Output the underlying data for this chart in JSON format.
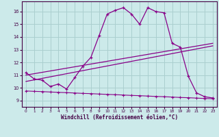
{
  "xlabel": "Windchill (Refroidissement éolien,°C)",
  "bg_color": "#cceaea",
  "grid_color": "#aacfcf",
  "line_color": "#880088",
  "x_ticks": [
    0,
    1,
    2,
    3,
    4,
    5,
    6,
    7,
    8,
    9,
    10,
    11,
    12,
    13,
    14,
    15,
    16,
    17,
    18,
    19,
    20,
    21,
    22,
    23
  ],
  "y_ticks": [
    9,
    10,
    11,
    12,
    13,
    14,
    15,
    16
  ],
  "xlim": [
    -0.5,
    23.5
  ],
  "ylim": [
    8.5,
    16.8
  ],
  "line1_x": [
    0,
    1,
    2,
    3,
    4,
    5,
    6,
    7,
    8,
    9,
    10,
    11,
    12,
    13,
    14,
    15,
    16,
    17,
    18,
    19,
    20,
    21,
    22,
    23
  ],
  "line1_y": [
    11.2,
    10.7,
    10.6,
    10.1,
    10.3,
    9.9,
    10.8,
    11.7,
    12.4,
    14.1,
    15.8,
    16.1,
    16.3,
    15.8,
    15.0,
    16.3,
    16.0,
    15.9,
    13.5,
    13.2,
    10.9,
    9.6,
    9.3,
    9.2
  ],
  "line2_x": [
    0,
    1,
    2,
    3,
    4,
    5,
    6,
    7,
    8,
    9,
    10,
    11,
    12,
    13,
    14,
    15,
    16,
    17,
    18,
    19,
    20,
    21,
    22,
    23
  ],
  "line2_y": [
    9.75,
    9.72,
    9.7,
    9.67,
    9.64,
    9.62,
    9.59,
    9.56,
    9.54,
    9.51,
    9.48,
    9.46,
    9.43,
    9.4,
    9.38,
    9.35,
    9.32,
    9.3,
    9.27,
    9.24,
    9.22,
    9.19,
    9.16,
    9.14
  ],
  "line3_x": [
    0,
    23
  ],
  "line3_y": [
    10.5,
    13.3
  ],
  "line4_x": [
    0,
    23
  ],
  "line4_y": [
    11.0,
    13.5
  ]
}
